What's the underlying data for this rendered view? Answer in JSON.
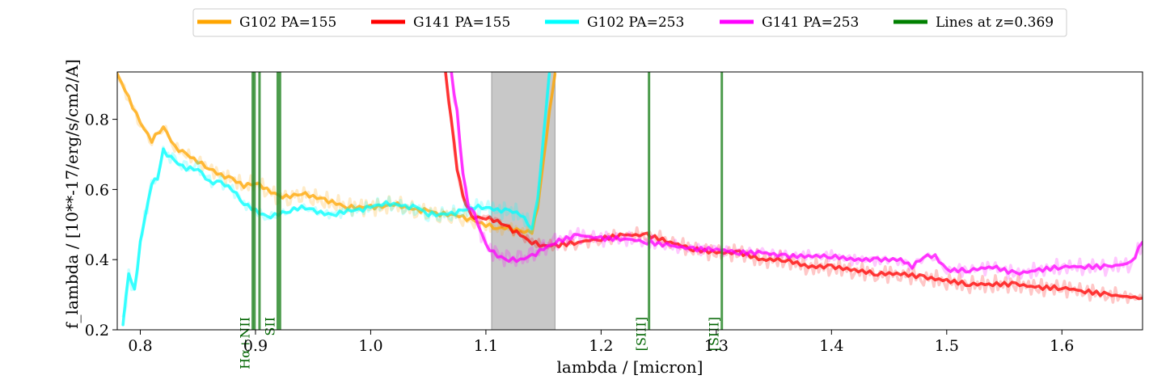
{
  "chart_data": {
    "type": "line",
    "title": "",
    "xlabel": "lambda / [micron]",
    "ylabel": "f_lambda / [10**-17/erg/s/cm2/A]",
    "xlim": [
      0.78,
      1.67
    ],
    "ylim": [
      0.2,
      0.935
    ],
    "x_ticks": [
      0.8,
      0.9,
      1.0,
      1.1,
      1.2,
      1.3,
      1.4,
      1.5,
      1.6
    ],
    "x_tick_labels": [
      "0.8",
      "0.9",
      "1.0",
      "1.1",
      "1.2",
      "1.3",
      "1.4",
      "1.5",
      "1.6"
    ],
    "y_ticks": [
      0.2,
      0.4,
      0.6,
      0.8
    ],
    "y_tick_labels": [
      "0.2",
      "0.4",
      "0.6",
      "0.8"
    ],
    "grid": false,
    "legend_position": "top (above plot)",
    "shaded_band": {
      "x": [
        1.105,
        1.16
      ],
      "color": "#c8c8c8"
    },
    "series": [
      {
        "name": "G102 PA=155",
        "color": "#ffa500",
        "x": [
          0.78,
          0.79,
          0.8,
          0.81,
          0.82,
          0.83,
          0.84,
          0.85,
          0.86,
          0.87,
          0.88,
          0.89,
          0.9,
          0.91,
          0.92,
          0.93,
          0.94,
          0.95,
          0.96,
          0.97,
          0.98,
          0.99,
          1.0,
          1.01,
          1.02,
          1.03,
          1.04,
          1.05,
          1.06,
          1.07,
          1.08,
          1.09,
          1.1,
          1.11,
          1.12,
          1.13,
          1.14,
          1.145,
          1.15,
          1.155,
          1.16
        ],
        "y": [
          0.93,
          0.86,
          0.79,
          0.74,
          0.78,
          0.72,
          0.7,
          0.68,
          0.66,
          0.64,
          0.63,
          0.61,
          0.62,
          0.6,
          0.58,
          0.58,
          0.59,
          0.58,
          0.57,
          0.56,
          0.55,
          0.55,
          0.55,
          0.55,
          0.56,
          0.55,
          0.54,
          0.54,
          0.53,
          0.53,
          0.52,
          0.51,
          0.5,
          0.49,
          0.49,
          0.48,
          0.48,
          0.55,
          0.68,
          0.82,
          0.93
        ]
      },
      {
        "name": "G141 PA=155",
        "color": "#ff0000",
        "x": [
          1.065,
          1.07,
          1.075,
          1.08,
          1.085,
          1.09,
          1.1,
          1.11,
          1.12,
          1.13,
          1.14,
          1.15,
          1.16,
          1.18,
          1.2,
          1.22,
          1.24,
          1.26,
          1.28,
          1.3,
          1.32,
          1.34,
          1.36,
          1.38,
          1.4,
          1.42,
          1.44,
          1.46,
          1.48,
          1.5,
          1.52,
          1.54,
          1.56,
          1.58,
          1.6,
          1.62,
          1.64,
          1.67
        ],
        "y": [
          0.93,
          0.8,
          0.66,
          0.58,
          0.54,
          0.52,
          0.52,
          0.51,
          0.49,
          0.47,
          0.45,
          0.44,
          0.44,
          0.45,
          0.46,
          0.47,
          0.47,
          0.45,
          0.43,
          0.42,
          0.42,
          0.4,
          0.4,
          0.38,
          0.38,
          0.37,
          0.36,
          0.36,
          0.35,
          0.34,
          0.33,
          0.33,
          0.33,
          0.32,
          0.32,
          0.31,
          0.3,
          0.29
        ]
      },
      {
        "name": "G102 PA=253",
        "color": "#00ffff",
        "x": [
          0.785,
          0.79,
          0.795,
          0.8,
          0.81,
          0.815,
          0.82,
          0.83,
          0.84,
          0.85,
          0.86,
          0.87,
          0.88,
          0.89,
          0.9,
          0.91,
          0.92,
          0.93,
          0.94,
          0.95,
          0.96,
          0.97,
          0.98,
          0.99,
          1.0,
          1.01,
          1.02,
          1.03,
          1.04,
          1.05,
          1.06,
          1.07,
          1.08,
          1.09,
          1.1,
          1.11,
          1.12,
          1.13,
          1.14,
          1.145,
          1.15,
          1.155
        ],
        "y": [
          0.22,
          0.36,
          0.31,
          0.45,
          0.62,
          0.63,
          0.71,
          0.68,
          0.66,
          0.66,
          0.62,
          0.62,
          0.6,
          0.56,
          0.54,
          0.52,
          0.53,
          0.54,
          0.55,
          0.54,
          0.53,
          0.53,
          0.54,
          0.54,
          0.55,
          0.56,
          0.56,
          0.55,
          0.55,
          0.53,
          0.53,
          0.53,
          0.54,
          0.55,
          0.55,
          0.54,
          0.54,
          0.53,
          0.49,
          0.57,
          0.75,
          0.93
        ]
      },
      {
        "name": "G141 PA=253",
        "color": "#ff00ff",
        "x": [
          1.07,
          1.075,
          1.08,
          1.085,
          1.09,
          1.1,
          1.11,
          1.12,
          1.13,
          1.14,
          1.15,
          1.16,
          1.18,
          1.2,
          1.22,
          1.24,
          1.26,
          1.28,
          1.3,
          1.32,
          1.34,
          1.36,
          1.38,
          1.4,
          1.42,
          1.44,
          1.46,
          1.47,
          1.48,
          1.49,
          1.5,
          1.52,
          1.54,
          1.56,
          1.58,
          1.6,
          1.62,
          1.64,
          1.66,
          1.67
        ],
        "y": [
          0.93,
          0.82,
          0.65,
          0.55,
          0.53,
          0.44,
          0.41,
          0.4,
          0.4,
          0.41,
          0.43,
          0.45,
          0.47,
          0.46,
          0.46,
          0.45,
          0.44,
          0.43,
          0.43,
          0.42,
          0.42,
          0.41,
          0.41,
          0.41,
          0.4,
          0.4,
          0.4,
          0.38,
          0.41,
          0.41,
          0.37,
          0.37,
          0.38,
          0.36,
          0.37,
          0.38,
          0.38,
          0.38,
          0.39,
          0.45
        ]
      }
    ],
    "vertical_lines": {
      "name": "Lines at z=0.369",
      "color": "#2e8b2e",
      "lines": [
        {
          "x": 0.8976,
          "label": "Hα+NII"
        },
        {
          "x": 0.8992,
          "label": ""
        },
        {
          "x": 0.9035,
          "label": ""
        },
        {
          "x": 0.9193,
          "label": "SII"
        },
        {
          "x": 0.9213,
          "label": ""
        },
        {
          "x": 1.2416,
          "label": "[SIII]"
        },
        {
          "x": 1.3048,
          "label": "[SIII]"
        }
      ]
    },
    "legend": [
      {
        "label": "G102 PA=155",
        "color": "#ffa500"
      },
      {
        "label": "G141 PA=155",
        "color": "#ff0000"
      },
      {
        "label": "G102 PA=253",
        "color": "#00ffff"
      },
      {
        "label": "G141 PA=253",
        "color": "#ff00ff"
      },
      {
        "label": "Lines at z=0.369",
        "color": "#008000"
      }
    ]
  }
}
